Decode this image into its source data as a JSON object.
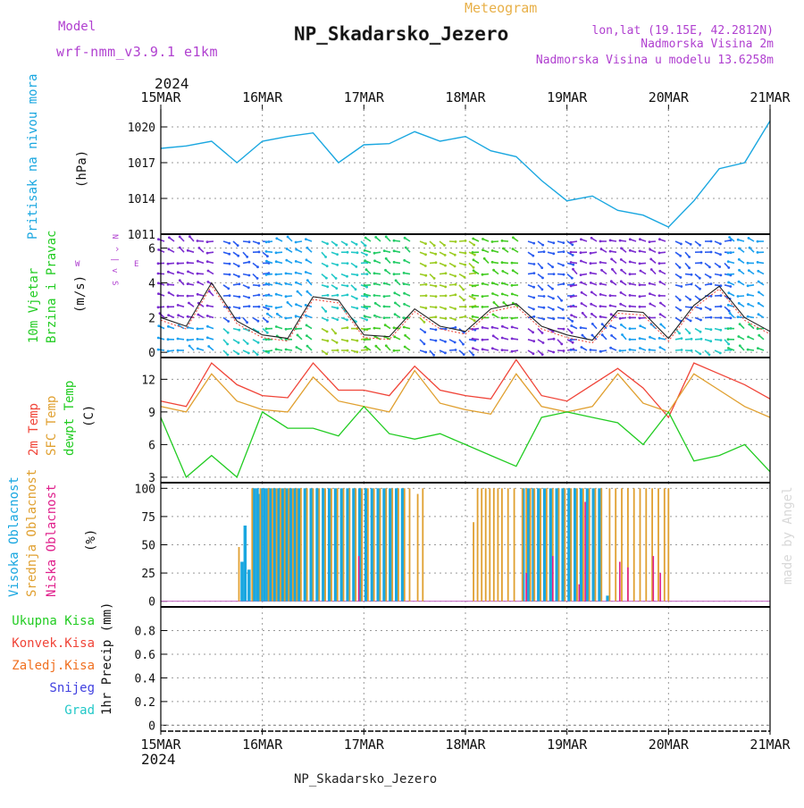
{
  "header": {
    "model_label": "Model",
    "model_name": "wrf-nmm_v3.9.1 e1km",
    "type_label": "Meteogram",
    "station_title": "NP_Skadarsko_Jezero",
    "coords": "lon,lat (19.15E, 42.2812N)",
    "altitude": "Nadmorska Visina 2m",
    "model_altitude": "Nadmorska Visina u modelu 13.6258m"
  },
  "footer": {
    "station": "NP_Skadarsko_Jezero",
    "watermark": "made by Angel"
  },
  "time_axis": {
    "year": "2024",
    "days": [
      "15MAR",
      "16MAR",
      "17MAR",
      "18MAR",
      "19MAR",
      "20MAR",
      "21MAR"
    ]
  },
  "colors": {
    "pressure": "#1aa7e0",
    "temp2m": "#f04438",
    "sfc_temp": "#e0a030",
    "dewpt": "#22cc22",
    "cloud_high": "#1aa7e0",
    "cloud_mid": "#e0a030",
    "cloud_low": "#e0208c",
    "rain_total": "#22cc22",
    "rain_conv": "#f04438",
    "rain_freez": "#f07020",
    "snow": "#4040e0",
    "hail": "#22c8c8",
    "wind_label": "#22cc22",
    "compass": "#b040d0",
    "header_purple": "#b040d0",
    "meteogram_orange": "#e8b048"
  },
  "chart_data": [
    {
      "type": "line",
      "panel": "pressure",
      "side_label": "Pritisak na nivou mora",
      "unit": "(hPa)",
      "ylim": [
        1011,
        1021.5
      ],
      "yticks": [
        "1011",
        "1014",
        "1017",
        "1020"
      ],
      "grid": true,
      "series": [
        {
          "x": [
            0,
            0.25,
            0.5,
            0.75,
            1,
            1.25,
            1.5,
            1.75,
            2,
            2.25,
            2.5,
            2.75,
            3,
            3.25,
            3.5,
            3.75,
            4,
            4.25,
            4.5,
            4.75,
            5,
            5.25,
            5.5,
            5.75,
            6
          ],
          "values": [
            1018.2,
            1018.4,
            1018.8,
            1017.0,
            1018.8,
            1019.2,
            1019.5,
            1017.0,
            1018.5,
            1018.6,
            1019.6,
            1018.8,
            1019.2,
            1018.0,
            1017.5,
            1015.5,
            1013.8,
            1014.2,
            1013.0,
            1012.6,
            1011.6,
            1013.8,
            1016.5,
            1017.0,
            1020.5
          ]
        }
      ]
    },
    {
      "type": "line",
      "panel": "wind",
      "side_label": [
        "10m Vjetar",
        "Brzina i Pravac"
      ],
      "unit": "(m/s)",
      "compass": [
        "N",
        "^",
        "|",
        "v",
        "S"
      ],
      "compass_w": "W",
      "compass_e": "E",
      "ylim": [
        -0.3,
        6.8
      ],
      "yticks": [
        "0",
        "2",
        "4",
        "6"
      ],
      "grid": true,
      "series": [
        {
          "x": [
            0,
            0.25,
            0.5,
            0.75,
            1,
            1.25,
            1.5,
            1.75,
            2,
            2.25,
            2.5,
            2.75,
            3,
            3.25,
            3.5,
            3.75,
            4,
            4.25,
            4.5,
            4.75,
            5,
            5.25,
            5.5,
            5.75,
            6
          ],
          "values": [
            2.0,
            1.5,
            4.0,
            1.8,
            1.0,
            0.8,
            3.2,
            3.0,
            1.0,
            0.9,
            2.5,
            1.5,
            1.2,
            2.5,
            2.8,
            1.5,
            1.0,
            0.7,
            2.4,
            2.3,
            0.8,
            2.7,
            3.8,
            2.0,
            1.2
          ]
        }
      ]
    },
    {
      "type": "line",
      "panel": "temperature",
      "side_labels": [
        "2m Temp",
        "SFC Temp",
        "dewpt Temp"
      ],
      "unit": "(C)",
      "ylim": [
        2.5,
        14
      ],
      "yticks": [
        "3",
        "6",
        "9",
        "12"
      ],
      "grid": true,
      "series": [
        {
          "name": "2m Temp",
          "x": [
            0,
            0.25,
            0.5,
            0.75,
            1,
            1.25,
            1.5,
            1.75,
            2,
            2.25,
            2.5,
            2.75,
            3,
            3.25,
            3.5,
            3.75,
            4,
            4.25,
            4.5,
            4.75,
            5,
            5.25,
            5.5,
            5.75,
            6
          ],
          "values": [
            10.0,
            9.5,
            13.5,
            11.5,
            10.5,
            10.3,
            13.5,
            11.0,
            11.0,
            10.5,
            13.2,
            11.0,
            10.5,
            10.2,
            13.8,
            10.5,
            10.0,
            11.5,
            13.0,
            11.2,
            8.5,
            13.5,
            12.5,
            11.5,
            10.2
          ]
        },
        {
          "name": "SFC Temp",
          "x": [
            0,
            0.25,
            0.5,
            0.75,
            1,
            1.25,
            1.5,
            1.75,
            2,
            2.25,
            2.5,
            2.75,
            3,
            3.25,
            3.5,
            3.75,
            4,
            4.25,
            4.5,
            4.75,
            5,
            5.25,
            5.5,
            5.75,
            6
          ],
          "values": [
            9.5,
            9.0,
            12.5,
            10.0,
            9.2,
            9.0,
            12.2,
            10.0,
            9.5,
            9.0,
            12.8,
            9.8,
            9.2,
            8.8,
            12.5,
            9.5,
            9.0,
            9.5,
            12.5,
            9.8,
            9.0,
            12.5,
            11.0,
            9.5,
            8.5
          ]
        },
        {
          "name": "dewpt Temp",
          "x": [
            0,
            0.25,
            0.5,
            0.75,
            1,
            1.25,
            1.5,
            1.75,
            2,
            2.25,
            2.5,
            2.75,
            3,
            3.25,
            3.5,
            3.75,
            4,
            4.25,
            4.5,
            4.75,
            5,
            5.25,
            5.5,
            5.75,
            6
          ],
          "values": [
            8.5,
            3.0,
            5.0,
            3.0,
            9.0,
            7.5,
            7.5,
            6.8,
            9.5,
            7.0,
            6.5,
            7.0,
            6.0,
            5.0,
            4.0,
            8.5,
            9.0,
            8.5,
            8.0,
            6.0,
            9.0,
            4.5,
            5.0,
            6.0,
            3.5
          ]
        }
      ]
    },
    {
      "type": "bar",
      "panel": "cloud",
      "side_labels": [
        "Visoka Oblacnost",
        "Srednja Oblacnost",
        "Niska Oblacnost"
      ],
      "unit": "(%)",
      "ylim": [
        -5,
        105
      ],
      "yticks": [
        "0",
        "25",
        "50",
        "75",
        "100"
      ],
      "grid": true,
      "high_cloud": {
        "x": [
          0.8,
          0.83,
          0.87,
          0.92,
          0.95,
          0.97,
          0.99,
          1.02,
          1.05,
          1.08,
          1.12,
          1.16,
          1.2,
          1.24,
          1.28,
          1.32,
          1.36,
          1.42,
          1.48,
          1.54,
          1.6,
          1.66,
          1.72,
          1.78,
          1.84,
          1.9,
          1.96,
          2.02,
          2.08,
          2.14,
          2.2,
          2.26,
          2.32,
          2.38,
          3.57,
          3.62,
          3.67,
          3.72,
          3.78,
          3.84,
          3.9,
          3.96,
          4.02,
          4.08,
          4.14,
          4.2,
          4.26,
          4.32,
          4.4
        ],
        "values": [
          35,
          67,
          28,
          100,
          100,
          95,
          100,
          100,
          100,
          100,
          100,
          100,
          100,
          100,
          100,
          100,
          100,
          100,
          100,
          100,
          100,
          100,
          100,
          100,
          100,
          100,
          100,
          100,
          100,
          100,
          100,
          100,
          100,
          100,
          100,
          100,
          100,
          100,
          100,
          100,
          100,
          100,
          100,
          100,
          100,
          100,
          100,
          100,
          5
        ]
      },
      "mid_cloud": {
        "x": [
          0.77,
          0.9,
          0.98,
          1.06,
          1.1,
          1.14,
          1.18,
          1.22,
          1.26,
          1.3,
          1.34,
          1.38,
          1.44,
          1.5,
          1.56,
          1.62,
          1.68,
          1.74,
          1.8,
          1.86,
          1.92,
          1.98,
          2.04,
          2.1,
          2.16,
          2.22,
          2.28,
          2.34,
          2.4,
          2.45,
          2.53,
          2.58,
          3.08,
          3.12,
          3.16,
          3.2,
          3.24,
          3.28,
          3.32,
          3.36,
          3.42,
          3.48,
          3.56,
          3.6,
          3.64,
          3.68,
          3.74,
          3.8,
          3.86,
          3.92,
          3.98,
          4.04,
          4.1,
          4.16,
          4.22,
          4.28,
          4.34,
          4.42,
          4.48,
          4.54,
          4.6,
          4.66,
          4.72,
          4.78,
          4.84,
          4.9,
          4.96,
          5.0
        ],
        "values": [
          48,
          100,
          100,
          100,
          100,
          100,
          100,
          100,
          100,
          100,
          100,
          100,
          100,
          100,
          100,
          100,
          100,
          100,
          100,
          100,
          100,
          100,
          100,
          100,
          100,
          100,
          100,
          100,
          100,
          100,
          95,
          100,
          70,
          100,
          100,
          100,
          100,
          100,
          100,
          100,
          100,
          100,
          100,
          100,
          100,
          100,
          100,
          100,
          100,
          100,
          100,
          100,
          100,
          100,
          100,
          100,
          100,
          100,
          100,
          100,
          100,
          100,
          100,
          100,
          100,
          100,
          100,
          100
        ]
      },
      "low_cloud": {
        "x": [
          1.95,
          3.6,
          3.86,
          4.12,
          4.18,
          4.52,
          4.6,
          4.85,
          4.92
        ],
        "values": [
          40,
          25,
          40,
          15,
          88,
          35,
          30,
          40,
          25
        ]
      }
    },
    {
      "type": "bar",
      "panel": "precip",
      "side_label": "1hr Precip (mm)",
      "legend": [
        "Ukupna Kisa",
        "Konvek.Kisa",
        "Zaledj.Kisa",
        "Snijeg",
        "Grad"
      ],
      "ylim": [
        -0.05,
        1.0
      ],
      "yticks": [
        "0",
        "0.2",
        "0.4",
        "0.6",
        "0.8"
      ],
      "grid": true,
      "values": []
    }
  ]
}
